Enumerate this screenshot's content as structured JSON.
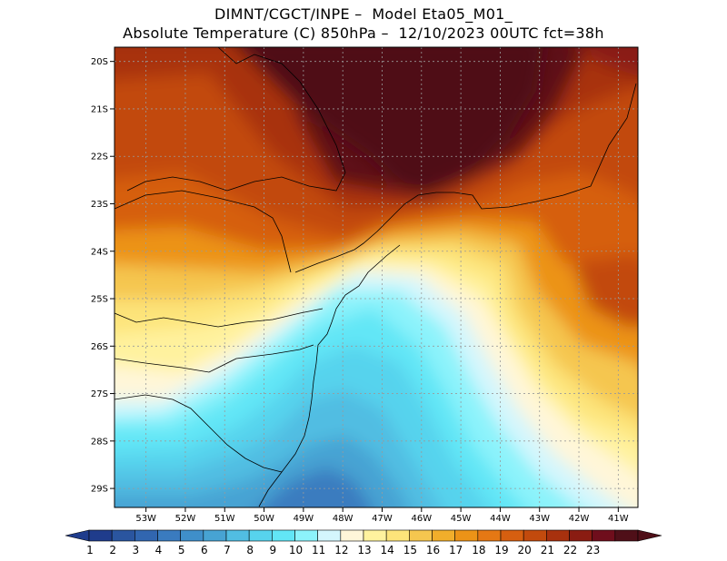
{
  "header": {
    "line1": "DIMNT/CGCT/INPE –  Model Eta05_M01_",
    "line2": "Absolute Temperature (C) 850hPa –  12/10/2023 00UTC fct=38h"
  },
  "map": {
    "lat_ticks": [
      "20S",
      "21S",
      "22S",
      "23S",
      "24S",
      "25S",
      "26S",
      "27S",
      "28S",
      "29S"
    ],
    "lon_ticks": [
      "53W",
      "52W",
      "51W",
      "50W",
      "49W",
      "48W",
      "47W",
      "46W",
      "45W",
      "44W",
      "43W",
      "42W",
      "41W"
    ],
    "grid": true,
    "lon_range": [
      -53.8,
      -40.5
    ],
    "lat_range": [
      -29.4,
      -19.7
    ]
  },
  "colorbar": {
    "labels": [
      "1",
      "2",
      "3",
      "4",
      "5",
      "6",
      "7",
      "8",
      "9",
      "10",
      "11",
      "12",
      "13",
      "14",
      "15",
      "16",
      "17",
      "18",
      "19",
      "20",
      "21",
      "22",
      "23"
    ],
    "colors": [
      "#1f3c8c",
      "#2a559f",
      "#3166b0",
      "#3a7bbf",
      "#3f8fca",
      "#47a3d3",
      "#51bde2",
      "#57d3ed",
      "#62e6f6",
      "#8cf3fb",
      "#d4f6fd",
      "#fff6d9",
      "#fff29e",
      "#fde47a",
      "#f5c64f",
      "#f1ae2b",
      "#ec9317",
      "#e57814",
      "#d65f10",
      "#c24a0d",
      "#a8310e",
      "#8a1c12",
      "#6f0e1c",
      "#4f0f18"
    ],
    "lower_arrow_color": "#1f3c8c",
    "upper_arrow_color": "#4f0f18"
  }
}
